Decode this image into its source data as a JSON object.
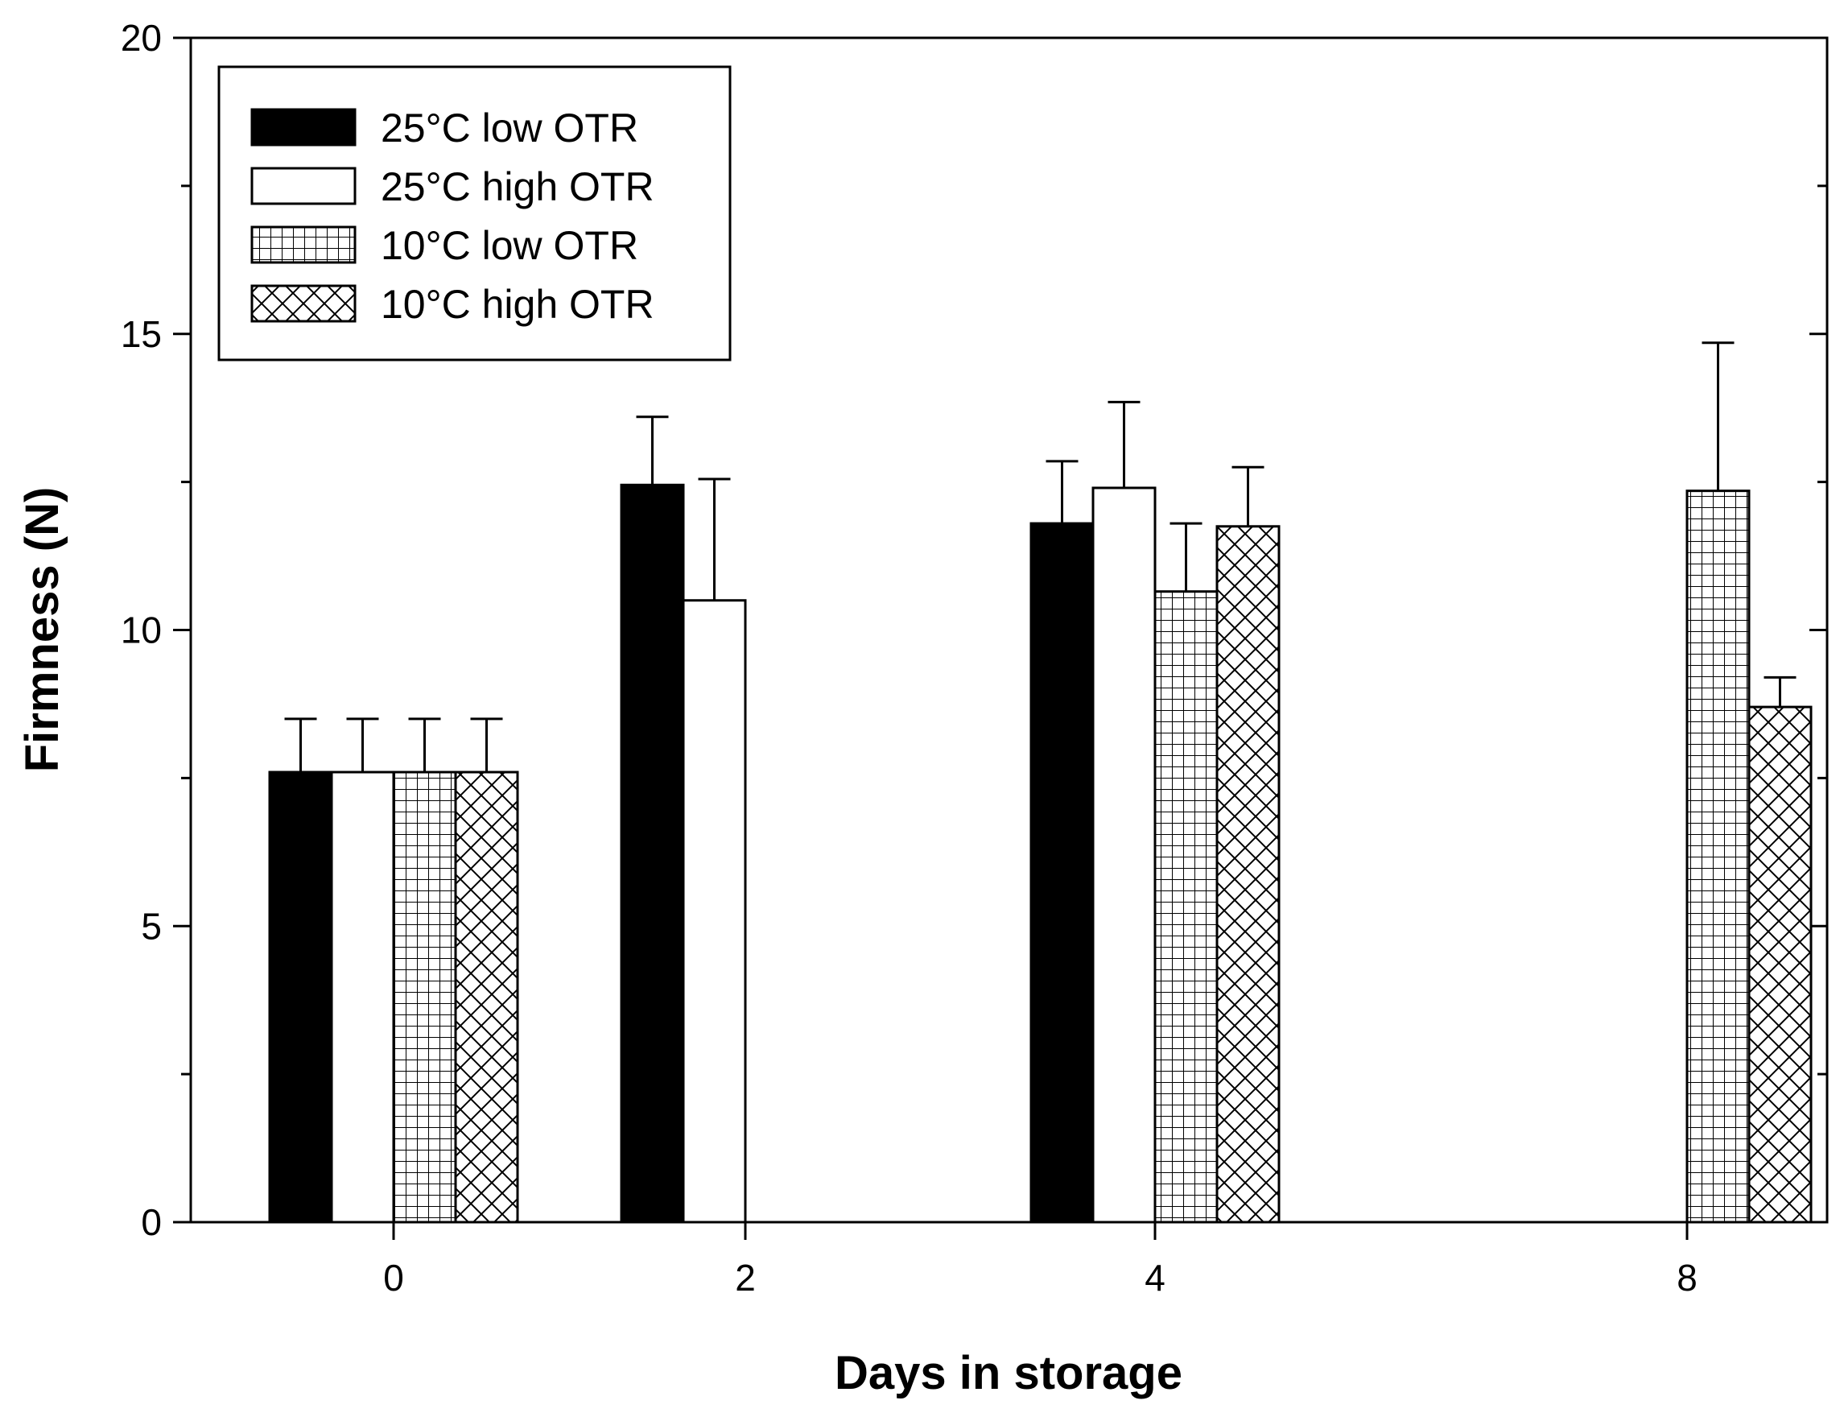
{
  "chart_data": {
    "type": "bar",
    "title": "",
    "xlabel": "Days in storage",
    "ylabel": "Firmness (N)",
    "ylim": [
      0,
      20
    ],
    "yticks": [
      0,
      5,
      10,
      15,
      20
    ],
    "y_minor_step": 2.5,
    "categories": [
      "0",
      "2",
      "4",
      "8"
    ],
    "category_positions": [
      0,
      2,
      4,
      8
    ],
    "legend_position": "top-left",
    "series": [
      {
        "name": "25°C low OTR",
        "pattern": "solid",
        "values": [
          7.6,
          12.45,
          11.8,
          null
        ],
        "errors": [
          0.9,
          1.15,
          1.05,
          null
        ]
      },
      {
        "name": "25°C high OTR",
        "pattern": "open",
        "values": [
          7.6,
          10.5,
          12.4,
          null
        ],
        "errors": [
          0.9,
          2.05,
          1.45,
          null
        ]
      },
      {
        "name": "10°C low OTR",
        "pattern": "grid",
        "values": [
          7.6,
          null,
          10.65,
          12.35
        ],
        "errors": [
          0.9,
          null,
          1.15,
          2.5
        ]
      },
      {
        "name": "10°C high OTR",
        "pattern": "crosshatch",
        "values": [
          7.6,
          null,
          11.75,
          8.7
        ],
        "errors": [
          0.9,
          null,
          1.0,
          0.5
        ]
      }
    ],
    "colors": {
      "ink": "#000000",
      "paper": "#ffffff"
    }
  }
}
